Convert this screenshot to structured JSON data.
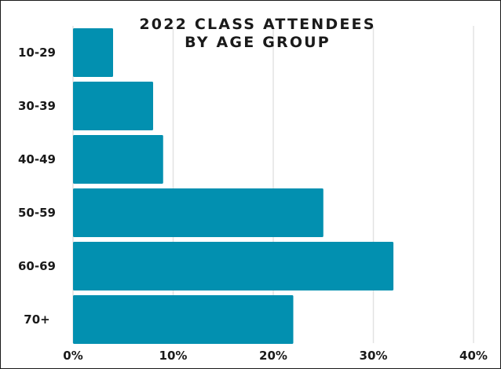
{
  "chart_data": {
    "type": "bar",
    "orientation": "horizontal",
    "title": [
      "2022 CLASS ATTENDEES",
      "BY AGE GROUP"
    ],
    "categories": [
      "10-29",
      "30-39",
      "40-49",
      "50-59",
      "60-69",
      "70+"
    ],
    "values": [
      4,
      8,
      9,
      25,
      32,
      22
    ],
    "unit": "%",
    "xlim": [
      0,
      40
    ],
    "xticks": [
      "0%",
      "10%",
      "20%",
      "30%",
      "40%"
    ],
    "grid": true,
    "colors": {
      "bar": "#0290b0",
      "grid": "#e3e3e3",
      "text": "#1a1a1a"
    }
  }
}
